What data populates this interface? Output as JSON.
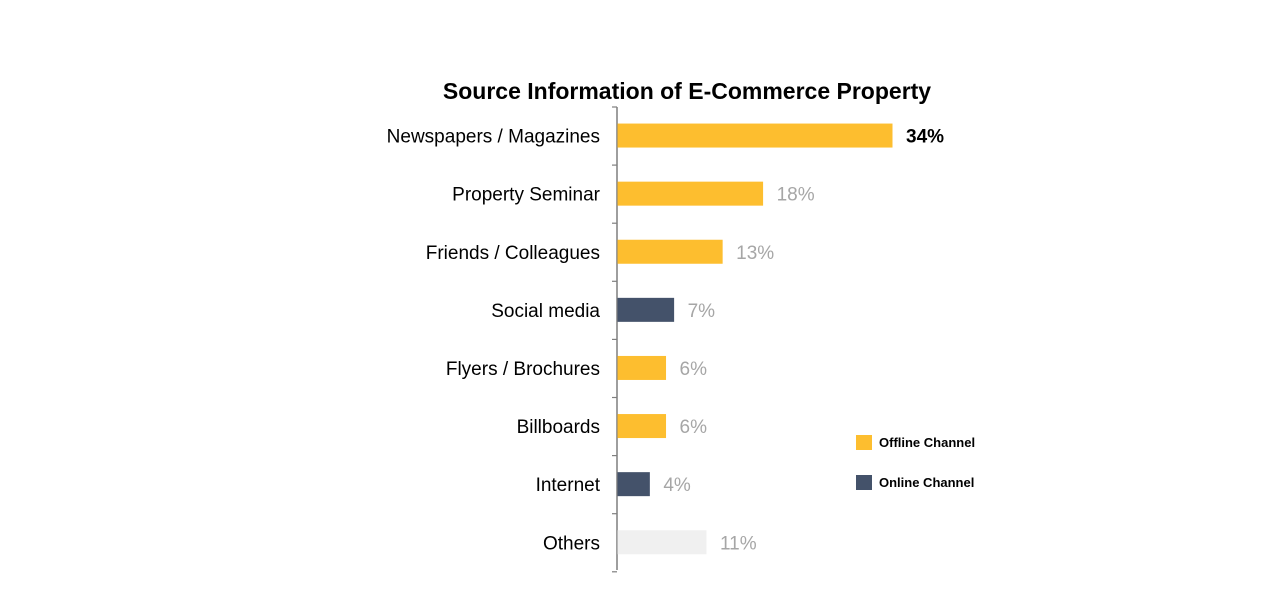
{
  "chart_data": {
    "type": "bar",
    "orientation": "horizontal",
    "title": "Source Information of E-Commerce Property",
    "xlabel": "",
    "ylabel": "",
    "unit": "%",
    "xlim": [
      0,
      34
    ],
    "grid": false,
    "categories": [
      "Newspapers / Magazines",
      "Property Seminar",
      "Friends / Colleagues",
      "Social media",
      "Flyers / Brochures",
      "Billboards",
      "Internet",
      "Others"
    ],
    "values": [
      34,
      18,
      13,
      7,
      6,
      6,
      4,
      11
    ],
    "value_labels": [
      "34%",
      "18%",
      "13%",
      "7%",
      "6%",
      "6%",
      "4%",
      "11%"
    ],
    "channel": [
      "offline",
      "offline",
      "offline",
      "online",
      "offline",
      "offline",
      "online",
      "other"
    ],
    "highlight_index": 0,
    "legend": {
      "position": "bottom-right",
      "entries": [
        {
          "key": "offline",
          "label": "Offline Channel",
          "color": "#FDBE2F"
        },
        {
          "key": "online",
          "label": "Online Channel",
          "color": "#44526A"
        }
      ]
    },
    "colors": {
      "offline": "#FDBE2F",
      "online": "#44526A",
      "other": "#F0F0F0",
      "axis": "#7F7F7F",
      "label_muted": "#A6A6A6",
      "label_highlight": "#000000",
      "category_text": "#000000"
    }
  }
}
